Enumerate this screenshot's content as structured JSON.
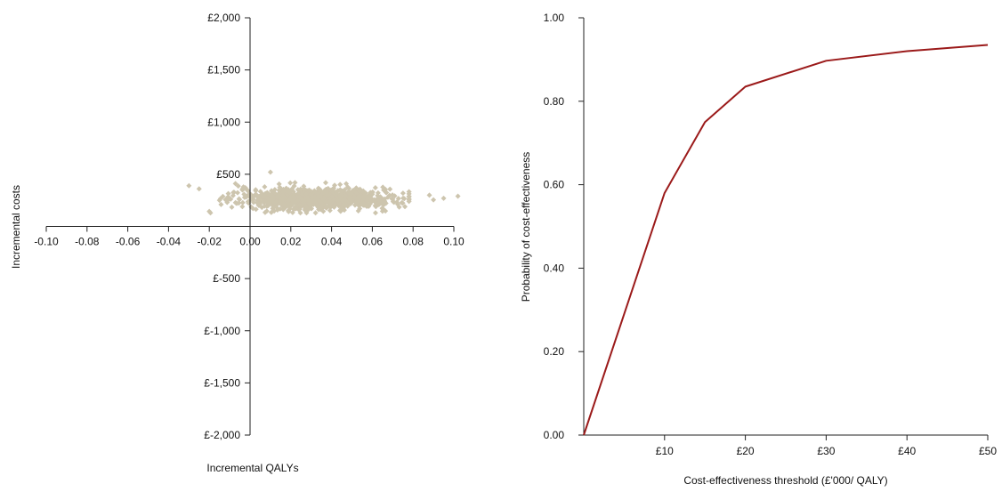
{
  "chart_data": [
    {
      "type": "scatter",
      "xlabel": "Incremental QALYs",
      "ylabel": "Incremental costs",
      "xlim": [
        -0.1,
        0.1
      ],
      "ylim": [
        -2000,
        2000
      ],
      "x_ticks": [
        -0.1,
        -0.08,
        -0.06,
        -0.04,
        -0.02,
        0.0,
        0.02,
        0.04,
        0.06,
        0.08,
        0.1
      ],
      "x_tick_labels": [
        "-0.10",
        "-0.08",
        "-0.06",
        "-0.04",
        "-0.02",
        "0.00",
        "0.02",
        "0.04",
        "0.06",
        "0.08",
        "0.10"
      ],
      "y_ticks": [
        2000,
        1500,
        1000,
        500,
        -500,
        -1000,
        -1500,
        -2000
      ],
      "y_tick_labels": [
        "£2,000",
        "£1,500",
        "£1,000",
        "£500",
        "£-500",
        "£-1,000",
        "£-1,500",
        "£-2,000"
      ],
      "axes_through_origin": true,
      "grid": false,
      "point_color": "#cdc5ae",
      "point_marker": "diamond",
      "cloud": {
        "n_points": 1000,
        "x_mean": 0.032,
        "x_sd": 0.019,
        "y_mean": 265,
        "y_sd": 50
      },
      "notable_points": [
        {
          "x": 0.01,
          "y": 520
        },
        {
          "x": -0.03,
          "y": 390
        },
        {
          "x": -0.025,
          "y": 360
        },
        {
          "x": 0.102,
          "y": 290
        },
        {
          "x": 0.095,
          "y": 270
        },
        {
          "x": 0.088,
          "y": 300
        },
        {
          "x": 0.09,
          "y": 255
        }
      ]
    },
    {
      "type": "line",
      "xlabel": "Cost-effectiveness threshold (£'000/ QALY)",
      "ylabel": "Probability of cost-effectiveness",
      "xlim": [
        0,
        50
      ],
      "ylim": [
        0,
        1
      ],
      "x_ticks": [
        10,
        20,
        30,
        40,
        50
      ],
      "x_tick_labels": [
        "£10",
        "£20",
        "£30",
        "£40",
        "£50"
      ],
      "y_ticks": [
        0,
        0.2,
        0.4,
        0.6,
        0.8,
        1.0
      ],
      "y_tick_labels": [
        "0.00",
        "0.20",
        "0.40",
        "0.60",
        "0.80",
        "1.00"
      ],
      "grid": false,
      "series": [
        {
          "color": "#9b1a1a",
          "x": [
            0,
            10,
            15,
            20,
            30,
            40,
            50
          ],
          "y": [
            0.0,
            0.58,
            0.75,
            0.835,
            0.897,
            0.92,
            0.935
          ]
        }
      ]
    }
  ]
}
